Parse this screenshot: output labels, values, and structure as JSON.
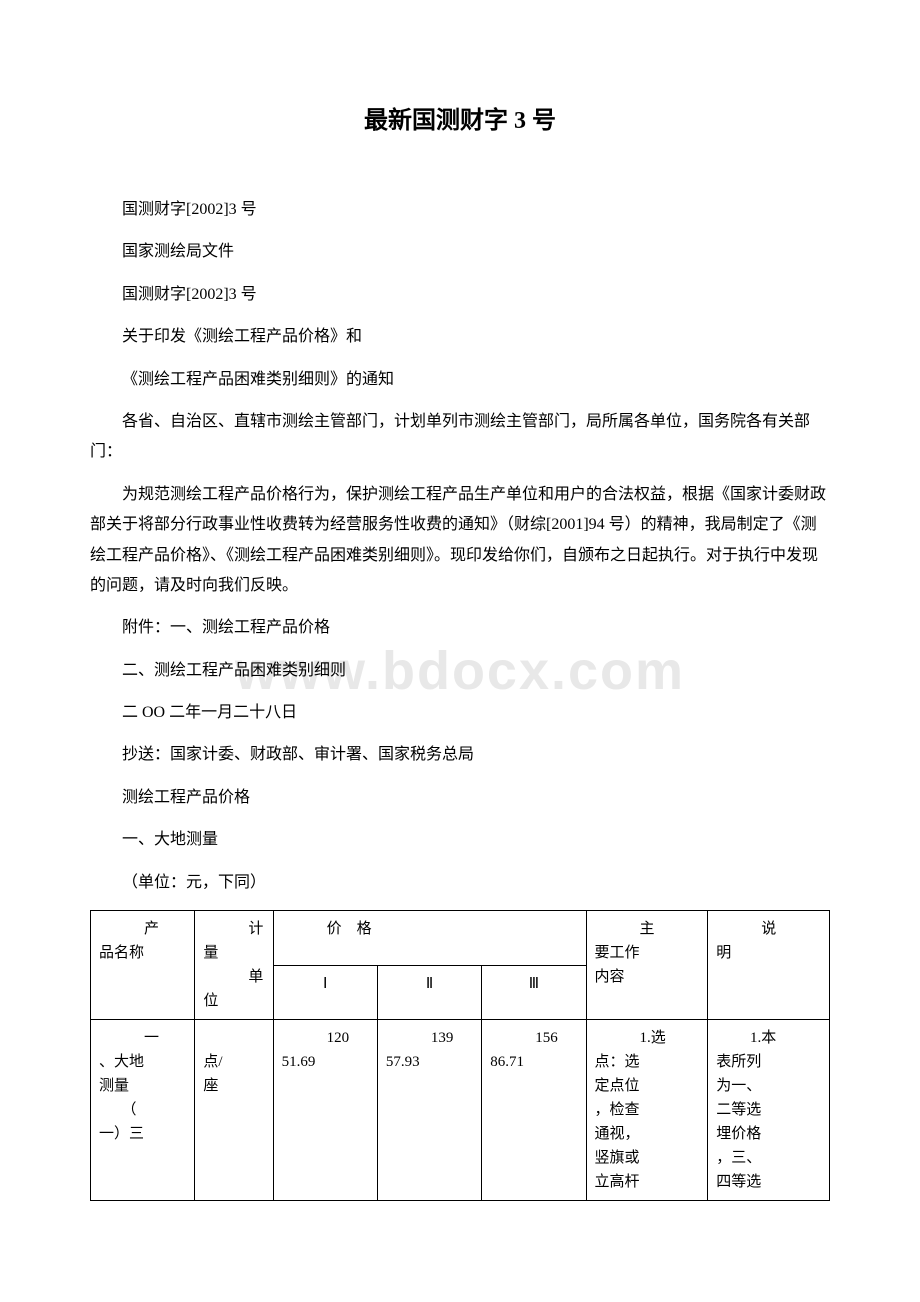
{
  "title": "最新国测财字 3 号",
  "paras": {
    "p1": "国测财字[2002]3 号",
    "p2": "国家测绘局文件",
    "p3": "国测财字[2002]3 号",
    "p4": "关于印发《测绘工程产品价格》和",
    "p5": "《测绘工程产品困难类别细则》的通知",
    "p6": "各省、自治区、直辖市测绘主管部门，计划单列市测绘主管部门，局所属各单位，国务院各有关部门：",
    "p7": "为规范测绘工程产品价格行为，保护测绘工程产品生产单位和用户的合法权益，根据《国家计委财政部关于将部分行政事业性收费转为经营服务性收费的通知》（财综[2001]94 号）的精神，我局制定了《测绘工程产品价格》、《测绘工程产品困难类别细则》。现印发给你们，自颁布之日起执行。对于执行中发现的问题，请及时向我们反映。",
    "p8": "附件：一、测绘工程产品价格",
    "p9": "二、测绘工程产品困难类别细则",
    "p10": " 二 OO 二年一月二十八日",
    "p11": "抄送：国家计委、财政部、审计署、国家税务总局",
    "p12": "测绘工程产品价格",
    "p13": "一、大地测量",
    "p14": "（单位：元，下同）"
  },
  "watermark": "www.bdocx.com",
  "table": {
    "header": {
      "name_top": "　　　产",
      "name_bot": "品名称",
      "unit_top": "　　　计",
      "unit_mid": "量",
      "unit_lbl_top": "　　　单",
      "unit_lbl_bot": "位",
      "price": "价　格",
      "c1": "Ⅰ",
      "c2": "Ⅱ",
      "c3": "Ⅲ",
      "work_top": "　　　主",
      "work_mid": "要工作",
      "work_bot": "内容",
      "note_top": "　　　说",
      "note_bot": "明"
    },
    "row1": {
      "name": "　　　一\n、大地\n测量\n　　（\n一）三",
      "unit": "　　　点/\n座",
      "p1": "　　　120\n51.69",
      "p2": "　　　139\n57.93",
      "p3": "　　　156\n86.71",
      "work": "　　　1.选\n点：选\n定点位\n，检查\n通视，\n竖旗或\n立高杆",
      "note": "　　 1.本\n表所列\n为一、\n二等选\n埋价格\n，三、\n四等选"
    }
  },
  "colors": {
    "text": "#000000",
    "bg": "#ffffff",
    "watermark": "#e8e8e8",
    "border": "#000000"
  }
}
